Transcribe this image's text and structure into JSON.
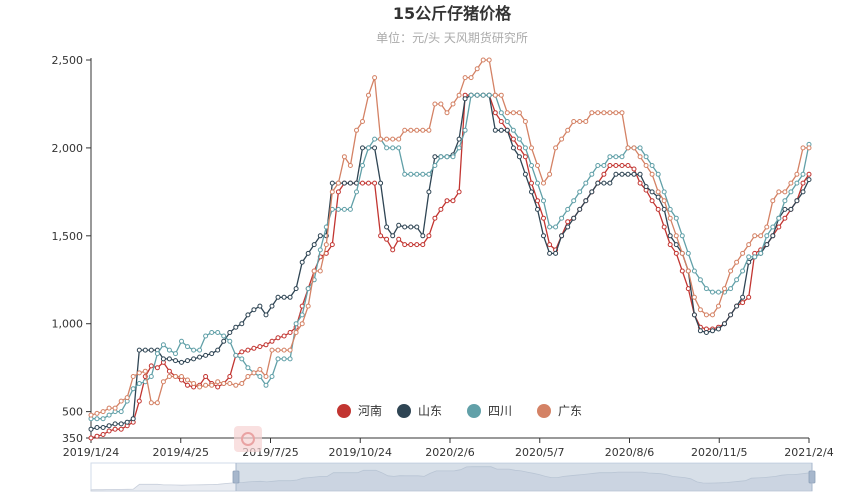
{
  "chart_data": {
    "type": "line",
    "title": "15公斤仔猪价格",
    "subtitle": "单位：元/头   天风期货研究所",
    "xlabel": "",
    "ylabel": "",
    "ylim": [
      350,
      2500
    ],
    "y_ticks": [
      "350",
      "500",
      "1,000",
      "1,500",
      "2,000",
      "2,500"
    ],
    "x_ticks": [
      "2019/1/24",
      "2019/4/25",
      "2019/7/25",
      "2019/10/24",
      "2020/2/6",
      "2020/5/7",
      "2020/8/6",
      "2020/11/5",
      "2021/2/4"
    ],
    "legend_position": "bottom-center",
    "grid": false,
    "marker": "hollow-circle",
    "series": [
      {
        "name": "河南",
        "color": "#c23531",
        "values": [
          350,
          360,
          370,
          390,
          400,
          400,
          420,
          440,
          560,
          700,
          760,
          750,
          780,
          730,
          700,
          680,
          650,
          640,
          650,
          700,
          660,
          640,
          660,
          700,
          820,
          840,
          850,
          860,
          870,
          880,
          900,
          920,
          930,
          950,
          980,
          1100,
          1200,
          1300,
          1380,
          1400,
          1450,
          1750,
          1800,
          1800,
          1800,
          1800,
          1800,
          1800,
          1500,
          1480,
          1420,
          1480,
          1450,
          1450,
          1450,
          1450,
          1500,
          1600,
          1650,
          1700,
          1700,
          1750,
          2300,
          2300,
          2300,
          2300,
          2300,
          2200,
          2150,
          2100,
          2050,
          2000,
          1950,
          1800,
          1700,
          1600,
          1450,
          1420,
          1500,
          1580,
          1600,
          1650,
          1700,
          1750,
          1800,
          1850,
          1900,
          1900,
          1900,
          1900,
          1880,
          1800,
          1760,
          1700,
          1650,
          1550,
          1450,
          1400,
          1300,
          1200,
          1050,
          980,
          970,
          970,
          980,
          1000,
          1050,
          1100,
          1120,
          1150,
          1400,
          1420,
          1450,
          1500,
          1550,
          1600,
          1650,
          1700,
          1800,
          1850
        ]
      },
      {
        "name": "山东",
        "color": "#2f4554",
        "values": [
          400,
          410,
          410,
          420,
          430,
          430,
          440,
          460,
          850,
          850,
          850,
          850,
          800,
          800,
          790,
          780,
          790,
          800,
          810,
          820,
          830,
          850,
          900,
          950,
          980,
          1000,
          1050,
          1080,
          1100,
          1050,
          1100,
          1150,
          1150,
          1150,
          1200,
          1350,
          1400,
          1450,
          1500,
          1500,
          1800,
          1800,
          1800,
          1800,
          1800,
          2000,
          2000,
          2000,
          1800,
          1550,
          1500,
          1560,
          1550,
          1550,
          1550,
          1500,
          1750,
          1950,
          1950,
          1950,
          1960,
          2050,
          2280,
          2300,
          2300,
          2300,
          2300,
          2100,
          2100,
          2100,
          2000,
          1950,
          1850,
          1750,
          1650,
          1500,
          1400,
          1400,
          1500,
          1550,
          1600,
          1650,
          1700,
          1750,
          1800,
          1800,
          1800,
          1850,
          1850,
          1850,
          1850,
          1850,
          1780,
          1750,
          1720,
          1650,
          1500,
          1450,
          1400,
          1300,
          1050,
          960,
          950,
          960,
          970,
          1000,
          1050,
          1100,
          1150,
          1350,
          1380,
          1400,
          1450,
          1500,
          1600,
          1650,
          1650,
          1700,
          1750,
          1820
        ]
      },
      {
        "name": "四川",
        "color": "#61a0a8",
        "values": [
          460,
          460,
          460,
          480,
          500,
          500,
          560,
          630,
          660,
          670,
          700,
          830,
          880,
          850,
          830,
          900,
          870,
          850,
          850,
          930,
          950,
          950,
          930,
          900,
          820,
          800,
          750,
          720,
          700,
          650,
          700,
          800,
          800,
          800,
          1000,
          1050,
          1200,
          1250,
          1420,
          1550,
          1650,
          1650,
          1650,
          1650,
          1750,
          1900,
          2000,
          2050,
          2050,
          2000,
          2000,
          2000,
          1850,
          1850,
          1850,
          1850,
          1850,
          1900,
          1950,
          1950,
          1950,
          2000,
          2100,
          2300,
          2300,
          2300,
          2300,
          2300,
          2200,
          2150,
          2100,
          2050,
          2000,
          1900,
          1800,
          1700,
          1550,
          1550,
          1600,
          1650,
          1700,
          1750,
          1800,
          1850,
          1900,
          1900,
          1950,
          1950,
          1950,
          2000,
          2000,
          2000,
          1950,
          1900,
          1850,
          1750,
          1650,
          1600,
          1500,
          1400,
          1300,
          1250,
          1200,
          1180,
          1180,
          1180,
          1200,
          1250,
          1300,
          1380,
          1380,
          1400,
          1500,
          1550,
          1600,
          1700,
          1750,
          1800,
          1850,
          2020
        ]
      },
      {
        "name": "广东",
        "color": "#d48265",
        "values": [
          480,
          490,
          500,
          520,
          520,
          560,
          580,
          700,
          720,
          730,
          550,
          550,
          670,
          700,
          700,
          700,
          680,
          660,
          640,
          650,
          650,
          670,
          660,
          660,
          650,
          660,
          700,
          720,
          740,
          700,
          850,
          850,
          850,
          850,
          950,
          1000,
          1100,
          1300,
          1300,
          1450,
          1750,
          1800,
          1950,
          1900,
          2100,
          2150,
          2300,
          2400,
          2050,
          2050,
          2050,
          2050,
          2100,
          2100,
          2100,
          2100,
          2100,
          2250,
          2250,
          2200,
          2250,
          2300,
          2400,
          2400,
          2450,
          2500,
          2500,
          2300,
          2300,
          2200,
          2200,
          2200,
          2150,
          2000,
          1900,
          1800,
          1850,
          2000,
          2050,
          2100,
          2150,
          2150,
          2150,
          2200,
          2200,
          2200,
          2200,
          2200,
          2200,
          2000,
          2000,
          1950,
          1900,
          1850,
          1750,
          1700,
          1600,
          1500,
          1400,
          1300,
          1150,
          1080,
          1050,
          1050,
          1100,
          1200,
          1300,
          1350,
          1400,
          1450,
          1500,
          1500,
          1550,
          1700,
          1750,
          1750,
          1800,
          1850,
          2000,
          2000
        ]
      }
    ]
  }
}
